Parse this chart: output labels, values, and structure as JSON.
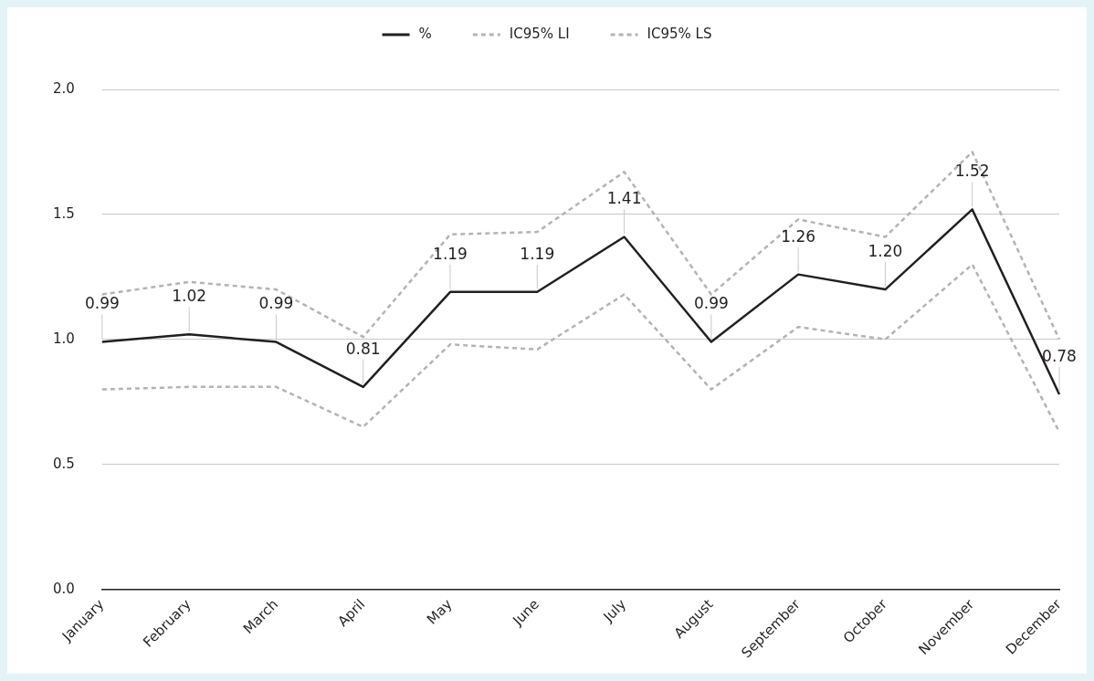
{
  "chart_data": {
    "type": "line",
    "categories": [
      "January",
      "February",
      "March",
      "April",
      "May",
      "June",
      "July",
      "August",
      "September",
      "October",
      "November",
      "December"
    ],
    "series": [
      {
        "name": "%",
        "color": "#231f20",
        "line_style": "solid",
        "values": [
          0.99,
          1.02,
          0.99,
          0.81,
          1.19,
          1.19,
          1.41,
          0.99,
          1.26,
          1.2,
          1.52,
          0.78
        ],
        "value_labels": [
          "0.99",
          "1.02",
          "0.99",
          "0.81",
          "1.19",
          "1.19",
          "1.41",
          "0.99",
          "1.26",
          "1.20",
          "1.52",
          "0.78"
        ]
      },
      {
        "name": "IC95% LI",
        "color": "#b3b3b3",
        "line_style": "dashed",
        "values": [
          0.8,
          0.81,
          0.81,
          0.65,
          0.98,
          0.96,
          1.18,
          0.8,
          1.05,
          1.0,
          1.3,
          0.63
        ]
      },
      {
        "name": "IC95% LS",
        "color": "#b3b3b3",
        "line_style": "dashed",
        "values": [
          1.18,
          1.23,
          1.2,
          1.01,
          1.42,
          1.43,
          1.67,
          1.18,
          1.48,
          1.41,
          1.75,
          1.0
        ]
      }
    ],
    "ylim": [
      0,
      2
    ],
    "yticks": [
      {
        "value": 0,
        "label": "0.0"
      },
      {
        "value": 0.5,
        "label": "0.5"
      },
      {
        "value": 1,
        "label": "1.0"
      },
      {
        "value": 1.5,
        "label": "1.5"
      },
      {
        "value": 2,
        "label": "2.0"
      }
    ],
    "grid": "y",
    "legend": "top",
    "marker": "none"
  }
}
